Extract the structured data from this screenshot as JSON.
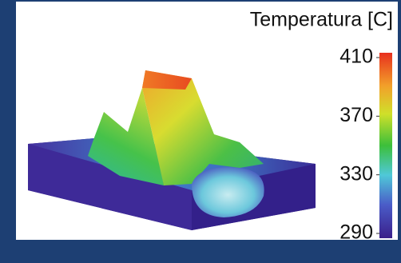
{
  "colorbar": {
    "title": "Temperatura [C]",
    "lim": [
      290,
      410
    ],
    "ticks": [
      410,
      370,
      330,
      290
    ]
  }
}
